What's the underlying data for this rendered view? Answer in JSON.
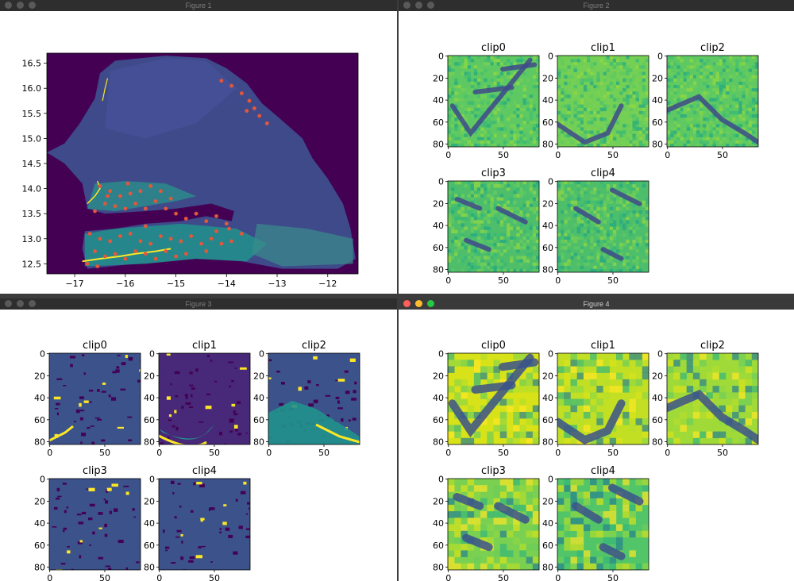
{
  "colors": {
    "viridis_dark": "#440154",
    "viridis_purple": "#482878",
    "viridis_blue": "#3b528b",
    "viridis_teal": "#21918c",
    "viridis_green": "#5ec962",
    "viridis_yellow": "#fde725",
    "point_red": "#e4573a"
  },
  "figures": [
    {
      "title": "Figure 1",
      "active": false,
      "chart_data": {
        "type": "heatmap",
        "description_free": true,
        "xlim": [
          -17.55,
          -11.4
        ],
        "ylim": [
          12.3,
          16.7
        ],
        "xticks": [
          "−17",
          "−16",
          "−15",
          "−14",
          "−13",
          "−12"
        ],
        "xtick_values": [
          -17,
          -16,
          -15,
          -14,
          -13,
          -12
        ],
        "yticks": [
          "12.5",
          "13.0",
          "13.5",
          "14.0",
          "14.5",
          "15.0",
          "15.5",
          "16.0",
          "16.5"
        ],
        "ytick_values": [
          12.5,
          13.0,
          13.5,
          14.0,
          14.5,
          15.0,
          15.5,
          16.0,
          16.5
        ],
        "points": [
          [
            -13.9,
            16.05
          ],
          [
            -13.7,
            15.9
          ],
          [
            -13.55,
            15.75
          ],
          [
            -13.45,
            15.6
          ],
          [
            -13.35,
            15.45
          ],
          [
            -13.2,
            15.3
          ],
          [
            -13.6,
            15.55
          ],
          [
            -14.1,
            16.15
          ],
          [
            -16.5,
            14.05
          ],
          [
            -16.3,
            13.95
          ],
          [
            -16.1,
            13.85
          ],
          [
            -15.9,
            13.9
          ],
          [
            -15.7,
            13.95
          ],
          [
            -15.5,
            14.05
          ],
          [
            -15.3,
            13.95
          ],
          [
            -15.1,
            13.8
          ],
          [
            -16.4,
            13.7
          ],
          [
            -16.2,
            13.65
          ],
          [
            -16.0,
            13.6
          ],
          [
            -15.8,
            13.7
          ],
          [
            -15.6,
            13.6
          ],
          [
            -15.4,
            13.75
          ],
          [
            -15.2,
            13.6
          ],
          [
            -15.0,
            13.5
          ],
          [
            -14.8,
            13.4
          ],
          [
            -14.6,
            13.5
          ],
          [
            -14.4,
            13.35
          ],
          [
            -14.2,
            13.45
          ],
          [
            -14.0,
            13.3
          ],
          [
            -16.6,
            13.55
          ],
          [
            -16.35,
            13.85
          ],
          [
            -15.95,
            14.1
          ],
          [
            -16.7,
            13.1
          ],
          [
            -16.5,
            13.0
          ],
          [
            -16.3,
            12.95
          ],
          [
            -16.1,
            13.05
          ],
          [
            -15.9,
            13.1
          ],
          [
            -15.7,
            12.95
          ],
          [
            -15.5,
            12.9
          ],
          [
            -15.3,
            13.05
          ],
          [
            -15.1,
            13.0
          ],
          [
            -14.9,
            12.95
          ],
          [
            -14.7,
            13.05
          ],
          [
            -14.5,
            12.9
          ],
          [
            -14.3,
            13.0
          ],
          [
            -14.1,
            12.9
          ],
          [
            -13.9,
            12.95
          ],
          [
            -13.7,
            13.1
          ],
          [
            -16.6,
            12.75
          ],
          [
            -16.4,
            12.65
          ],
          [
            -16.2,
            12.7
          ],
          [
            -16.0,
            12.6
          ],
          [
            -15.8,
            12.75
          ],
          [
            -15.6,
            12.7
          ],
          [
            -15.4,
            12.6
          ],
          [
            -15.2,
            12.75
          ],
          [
            -16.75,
            12.5
          ],
          [
            -16.55,
            12.45
          ],
          [
            -15.0,
            12.65
          ],
          [
            -14.8,
            12.7
          ],
          [
            -14.4,
            12.75
          ],
          [
            -13.95,
            13.2
          ],
          [
            -14.2,
            13.15
          ],
          [
            -15.6,
            13.25
          ]
        ]
      }
    },
    {
      "title": "Figure 2",
      "active": false,
      "chart_data": {
        "type": "heatmap",
        "panels": [
          {
            "title": "clip0",
            "xticks": [
              "0",
              "50"
            ],
            "yticks": [
              "0",
              "20",
              "40",
              "60",
              "80"
            ],
            "base": "#5ec962",
            "features": [
              [
                0.05,
                0.55,
                0.25,
                0.85,
                0.9,
                0.05
              ],
              [
                0.6,
                0.15,
                0.95,
                0.1
              ],
              [
                0.3,
                0.4,
                0.7,
                0.35
              ]
            ]
          },
          {
            "title": "clip1",
            "xticks": [
              "0",
              "50"
            ],
            "yticks": [
              "0",
              "20",
              "40",
              "60",
              "80"
            ],
            "base": "#74cf55",
            "features": [
              [
                0.0,
                0.75,
                0.3,
                0.95,
                0.55,
                0.85,
                0.7,
                0.55
              ]
            ]
          },
          {
            "title": "clip2",
            "xticks": [
              "0",
              "50"
            ],
            "yticks": [
              "0",
              "20",
              "40",
              "60",
              "80"
            ],
            "base": "#5ec962",
            "features": [
              [
                0.0,
                0.6,
                0.35,
                0.45,
                0.6,
                0.7,
                0.85,
                0.85,
                1.0,
                0.95
              ]
            ]
          },
          {
            "title": "clip3",
            "xticks": [
              "0",
              "50"
            ],
            "yticks": [
              "0",
              "20",
              "40",
              "60",
              "80"
            ],
            "base": "#4fbe6b",
            "features": [
              [
                0.1,
                0.2,
                0.35,
                0.3
              ],
              [
                0.55,
                0.3,
                0.85,
                0.45
              ],
              [
                0.2,
                0.65,
                0.45,
                0.75
              ]
            ]
          },
          {
            "title": "clip4",
            "xticks": [
              "0",
              "50"
            ],
            "yticks": [
              "0",
              "20",
              "40",
              "60",
              "80"
            ],
            "base": "#4fbe6b",
            "features": [
              [
                0.2,
                0.3,
                0.45,
                0.45
              ],
              [
                0.6,
                0.1,
                0.9,
                0.25
              ],
              [
                0.5,
                0.75,
                0.7,
                0.85
              ]
            ]
          }
        ]
      }
    },
    {
      "title": "Figure 3",
      "active": false,
      "chart_data": {
        "type": "heatmap",
        "panels": [
          {
            "title": "clip0",
            "xticks": [
              "0",
              "50"
            ],
            "yticks": [
              "0",
              "20",
              "40",
              "60",
              "80"
            ],
            "base": "#3b528b"
          },
          {
            "title": "clip1",
            "xticks": [
              "0",
              "50"
            ],
            "yticks": [
              "0",
              "20",
              "40",
              "60",
              "80"
            ],
            "base": "#482878"
          },
          {
            "title": "clip2",
            "xticks": [
              "0",
              "50"
            ],
            "yticks": [
              "0",
              "20",
              "40",
              "60",
              "80"
            ],
            "base": "#3b528b"
          },
          {
            "title": "clip3",
            "xticks": [
              "0",
              "50"
            ],
            "yticks": [
              "0",
              "20",
              "40",
              "60",
              "80"
            ],
            "base": "#3b528b"
          },
          {
            "title": "clip4",
            "xticks": [
              "0",
              "50"
            ],
            "yticks": [
              "0",
              "20",
              "40",
              "60",
              "80"
            ],
            "base": "#3b528b"
          }
        ]
      }
    },
    {
      "title": "Figure 4",
      "active": true,
      "chart_data": {
        "type": "heatmap",
        "panels": [
          {
            "title": "clip0",
            "xticks": [
              "0",
              "50"
            ],
            "yticks": [
              "0",
              "20",
              "40",
              "60",
              "80"
            ],
            "base": "#d8e219"
          },
          {
            "title": "clip1",
            "xticks": [
              "0",
              "50"
            ],
            "yticks": [
              "0",
              "20",
              "40",
              "60",
              "80"
            ],
            "base": "#c2df23"
          },
          {
            "title": "clip2",
            "xticks": [
              "0",
              "50"
            ],
            "yticks": [
              "0",
              "20",
              "40",
              "60",
              "80"
            ],
            "base": "#a0da39"
          },
          {
            "title": "clip3",
            "xticks": [
              "0",
              "50"
            ],
            "yticks": [
              "0",
              "20",
              "40",
              "60",
              "80"
            ],
            "base": "#7ad151"
          },
          {
            "title": "clip4",
            "xticks": [
              "0",
              "50"
            ],
            "yticks": [
              "0",
              "20",
              "40",
              "60",
              "80"
            ],
            "base": "#52c569"
          }
        ]
      }
    }
  ]
}
